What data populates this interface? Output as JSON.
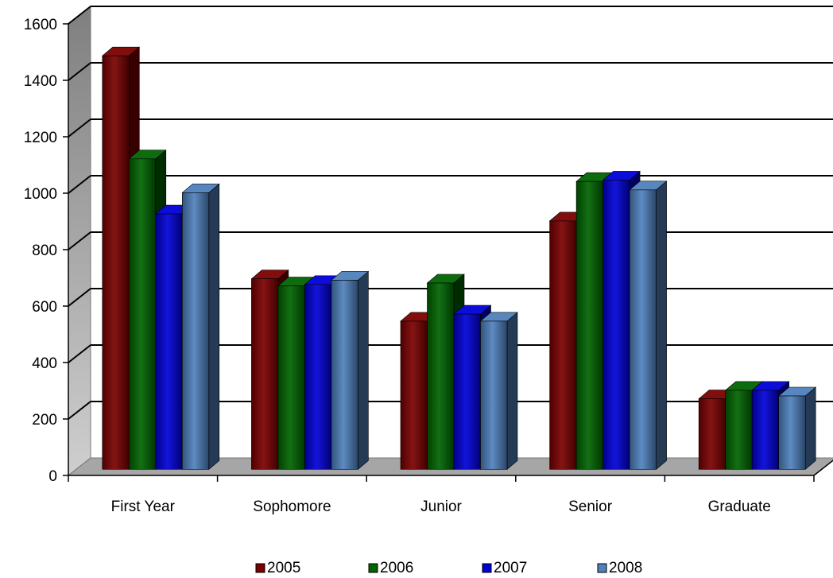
{
  "chart_data": {
    "type": "bar",
    "style": "3d-clustered-column",
    "categories": [
      "First Year",
      "Sophomore",
      "Junior",
      "Senior",
      "Graduate"
    ],
    "series": [
      {
        "name": "2005",
        "color": "#7a0000",
        "values": [
          1465,
          675,
          525,
          880,
          250
        ]
      },
      {
        "name": "2006",
        "color": "#006400",
        "values": [
          1100,
          650,
          660,
          1020,
          280
        ]
      },
      {
        "name": "2007",
        "color": "#0000d8",
        "values": [
          905,
          655,
          550,
          1025,
          280
        ]
      },
      {
        "name": "2008",
        "color": "#4f81bd",
        "values": [
          980,
          670,
          525,
          990,
          260
        ]
      }
    ],
    "ylim": [
      0,
      1600
    ],
    "yticks": [
      0,
      200,
      400,
      600,
      800,
      1000,
      1200,
      1400,
      1600
    ],
    "grid": true,
    "legend": "bottom",
    "title": "",
    "xlabel": "",
    "ylabel": ""
  }
}
